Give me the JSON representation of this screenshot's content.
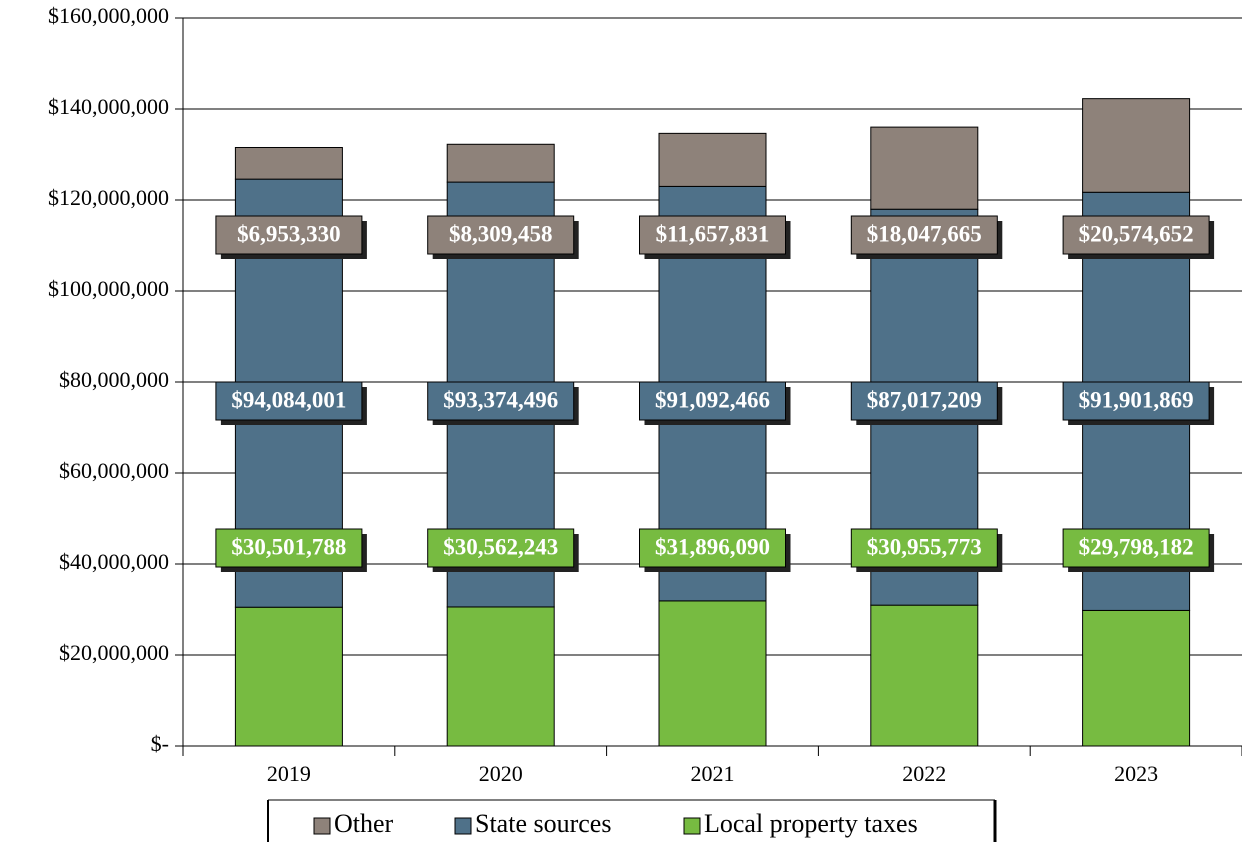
{
  "chart_data": {
    "type": "stacked-bar",
    "categories": [
      "2019",
      "2020",
      "2021",
      "2022",
      "2023"
    ],
    "series": [
      {
        "name": "Local property taxes",
        "color": "#77bb41",
        "values": [
          30501788,
          30562243,
          31896090,
          30955773,
          29798182
        ],
        "value_labels": [
          "$30,501,788",
          "$30,562,243",
          "$31,896,090",
          "$30,955,773",
          "$29,798,182"
        ]
      },
      {
        "name": "State sources",
        "color": "#4f7189",
        "values": [
          94084001,
          93374496,
          91092466,
          87017209,
          91901869
        ],
        "value_labels": [
          "$94,084,001",
          "$93,374,496",
          "$91,092,466",
          "$87,017,209",
          "$91,901,869"
        ]
      },
      {
        "name": "Other",
        "color": "#8e827a",
        "values": [
          6953330,
          8309458,
          11657831,
          18047665,
          20574652
        ],
        "value_labels": [
          "$6,953,330",
          "$8,309,458",
          "$11,657,831",
          "$18,047,665",
          "$20,574,652"
        ]
      }
    ],
    "ylim": [
      0,
      160000000
    ],
    "yticks": [
      {
        "value": 0,
        "label": "$-"
      },
      {
        "value": 20000000,
        "label": "$20,000,000"
      },
      {
        "value": 40000000,
        "label": "$40,000,000"
      },
      {
        "value": 60000000,
        "label": "$60,000,000"
      },
      {
        "value": 80000000,
        "label": "$80,000,000"
      },
      {
        "value": 100000000,
        "label": "$100,000,000"
      },
      {
        "value": 120000000,
        "label": "$120,000,000"
      },
      {
        "value": 140000000,
        "label": "$140,000,000"
      },
      {
        "value": 160000000,
        "label": "$160,000,000"
      }
    ],
    "grid": true,
    "legend": "bottom"
  }
}
